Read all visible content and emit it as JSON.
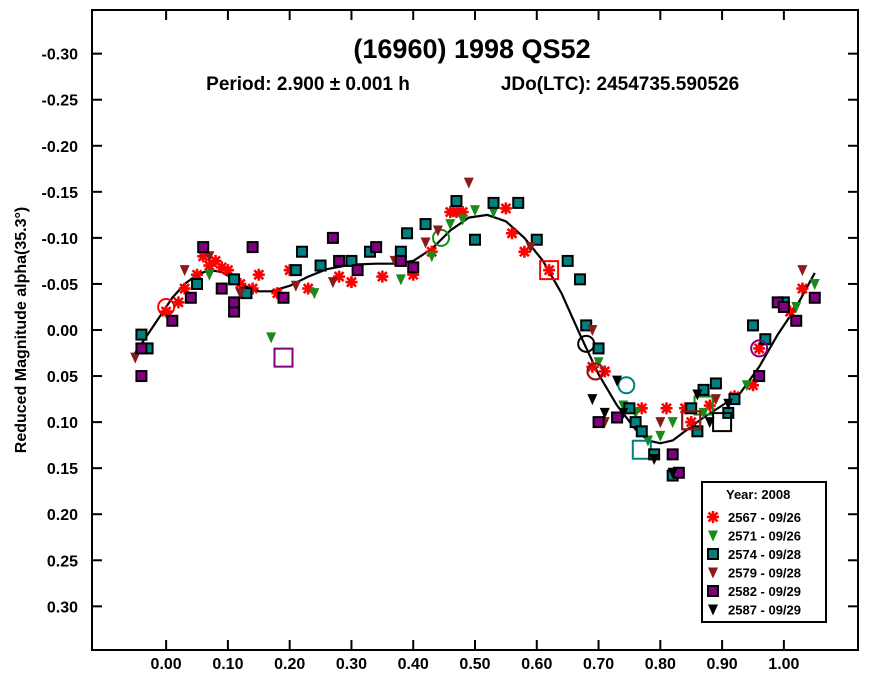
{
  "chart_data": {
    "type": "scatter",
    "title": "(16960) 1998 QS52",
    "subtitle_period": "Period: 2.900 ± 0.001 h",
    "subtitle_epoch": "JDo(LTC): 2454735.590526",
    "ylabel": "Reduced Magnitude alpha(35.3°)",
    "xlabel": "",
    "xlim": [
      -0.12,
      1.12
    ],
    "ylim": [
      0.3474,
      -0.3474
    ],
    "y_inverted": true,
    "grid": false,
    "x_ticks": [
      {
        "v": 0.0,
        "label": "0.00"
      },
      {
        "v": 0.1,
        "label": "0.10"
      },
      {
        "v": 0.2,
        "label": "0.20"
      },
      {
        "v": 0.3,
        "label": "0.30"
      },
      {
        "v": 0.4,
        "label": "0.40"
      },
      {
        "v": 0.5,
        "label": "0.50"
      },
      {
        "v": 0.6,
        "label": "0.60"
      },
      {
        "v": 0.7,
        "label": "0.70"
      },
      {
        "v": 0.8,
        "label": "0.80"
      },
      {
        "v": 0.9,
        "label": "0.90"
      },
      {
        "v": 1.0,
        "label": "1.00"
      }
    ],
    "y_ticks": [
      {
        "v": -0.3,
        "label": "-0.30"
      },
      {
        "v": -0.25,
        "label": "-0.25"
      },
      {
        "v": -0.2,
        "label": "-0.20"
      },
      {
        "v": -0.15,
        "label": "-0.15"
      },
      {
        "v": -0.1,
        "label": "-0.10"
      },
      {
        "v": -0.05,
        "label": "-0.05"
      },
      {
        "v": 0.0,
        "label": "0.00"
      },
      {
        "v": 0.05,
        "label": "0.05"
      },
      {
        "v": 0.1,
        "label": "0.10"
      },
      {
        "v": 0.15,
        "label": "0.15"
      },
      {
        "v": 0.2,
        "label": "0.20"
      },
      {
        "v": 0.25,
        "label": "0.25"
      },
      {
        "v": 0.3,
        "label": "0.30"
      }
    ],
    "legend": {
      "title": "Year: 2008",
      "placement": "bottom-right",
      "entries": [
        {
          "name": "2567 - 09/26",
          "marker": "star",
          "color": "#ff0000"
        },
        {
          "name": "2571 - 09/26",
          "marker": "triangle-down",
          "color": "#1a8a1a"
        },
        {
          "name": "2574 - 09/28",
          "marker": "square",
          "color": "#008080"
        },
        {
          "name": "2579 - 09/28",
          "marker": "triangle-down",
          "color": "#8b1a1a"
        },
        {
          "name": "2582 - 09/29",
          "marker": "square",
          "color": "#800080"
        },
        {
          "name": "2587 - 09/29",
          "marker": "triangle-down",
          "color": "#000000"
        }
      ]
    },
    "fit_curve": [
      [
        -0.05,
        0.025
      ],
      [
        -0.03,
        0.005
      ],
      [
        -0.01,
        -0.015
      ],
      [
        0.01,
        -0.035
      ],
      [
        0.03,
        -0.05
      ],
      [
        0.05,
        -0.06
      ],
      [
        0.07,
        -0.065
      ],
      [
        0.09,
        -0.063
      ],
      [
        0.11,
        -0.055
      ],
      [
        0.13,
        -0.047
      ],
      [
        0.15,
        -0.042
      ],
      [
        0.17,
        -0.042
      ],
      [
        0.2,
        -0.048
      ],
      [
        0.23,
        -0.058
      ],
      [
        0.26,
        -0.066
      ],
      [
        0.3,
        -0.071
      ],
      [
        0.34,
        -0.072
      ],
      [
        0.37,
        -0.072
      ],
      [
        0.4,
        -0.075
      ],
      [
        0.43,
        -0.088
      ],
      [
        0.46,
        -0.108
      ],
      [
        0.49,
        -0.122
      ],
      [
        0.52,
        -0.125
      ],
      [
        0.55,
        -0.118
      ],
      [
        0.58,
        -0.1
      ],
      [
        0.61,
        -0.075
      ],
      [
        0.64,
        -0.04
      ],
      [
        0.67,
        0.005
      ],
      [
        0.7,
        0.048
      ],
      [
        0.73,
        0.082
      ],
      [
        0.76,
        0.108
      ],
      [
        0.78,
        0.12
      ],
      [
        0.8,
        0.123
      ],
      [
        0.82,
        0.12
      ],
      [
        0.84,
        0.11
      ],
      [
        0.87,
        0.095
      ],
      [
        0.9,
        0.082
      ],
      [
        0.93,
        0.068
      ],
      [
        0.96,
        0.04
      ],
      [
        0.99,
        0.005
      ],
      [
        1.02,
        -0.025
      ],
      [
        1.05,
        -0.062
      ]
    ],
    "series": [
      {
        "name": "2567 - 09/26",
        "points": [
          [
            0.0,
            -0.02
          ],
          [
            0.02,
            -0.03
          ],
          [
            0.03,
            -0.045
          ],
          [
            0.05,
            -0.06
          ],
          [
            0.06,
            -0.08
          ],
          [
            0.07,
            -0.07
          ],
          [
            0.08,
            -0.075
          ],
          [
            0.09,
            -0.068
          ],
          [
            0.1,
            -0.065
          ],
          [
            0.12,
            -0.05
          ],
          [
            0.14,
            -0.045
          ],
          [
            0.15,
            -0.06
          ],
          [
            0.18,
            -0.04
          ],
          [
            0.2,
            -0.065
          ],
          [
            0.23,
            -0.045
          ],
          [
            0.28,
            -0.058
          ],
          [
            0.3,
            -0.052
          ],
          [
            0.35,
            -0.058
          ],
          [
            0.4,
            -0.06
          ],
          [
            0.43,
            -0.085
          ],
          [
            0.46,
            -0.128
          ],
          [
            0.47,
            -0.128
          ],
          [
            0.48,
            -0.128
          ],
          [
            0.55,
            -0.132
          ],
          [
            0.56,
            -0.105
          ],
          [
            0.58,
            -0.085
          ],
          [
            0.62,
            -0.065
          ],
          [
            0.69,
            0.04
          ],
          [
            0.71,
            0.045
          ],
          [
            0.77,
            0.085
          ],
          [
            0.81,
            0.085
          ],
          [
            0.84,
            0.085
          ],
          [
            0.85,
            0.1
          ],
          [
            0.88,
            0.082
          ],
          [
            0.92,
            0.072
          ],
          [
            0.95,
            0.06
          ],
          [
            0.96,
            0.02
          ],
          [
            1.01,
            -0.02
          ],
          [
            1.03,
            -0.045
          ]
        ],
        "circled": [
          [
            0.0,
            -0.025
          ],
          [
            0.695,
            0.045
          ]
        ],
        "boxed": [
          [
            0.62,
            -0.065
          ],
          [
            0.85,
            0.098
          ]
        ]
      },
      {
        "name": "2571 - 09/26",
        "points": [
          [
            0.07,
            -0.06
          ],
          [
            0.17,
            0.008
          ],
          [
            0.24,
            -0.04
          ],
          [
            0.38,
            -0.055
          ],
          [
            0.43,
            -0.08
          ],
          [
            0.46,
            -0.115
          ],
          [
            0.48,
            -0.12
          ],
          [
            0.5,
            -0.13
          ],
          [
            0.53,
            -0.128
          ],
          [
            0.7,
            0.035
          ],
          [
            0.74,
            0.082
          ],
          [
            0.76,
            0.09
          ],
          [
            0.78,
            0.12
          ],
          [
            0.8,
            0.115
          ],
          [
            0.82,
            0.1
          ],
          [
            0.87,
            0.09
          ],
          [
            0.94,
            0.06
          ],
          [
            1.02,
            -0.025
          ],
          [
            1.05,
            -0.05
          ]
        ],
        "circled": [
          [
            0.445,
            -0.1
          ]
        ],
        "boxed": [
          [
            0.87,
            0.082
          ]
        ]
      },
      {
        "name": "2574 - 09/28",
        "points": [
          [
            -0.04,
            0.005
          ],
          [
            -0.03,
            0.02
          ],
          [
            0.05,
            -0.05
          ],
          [
            0.11,
            -0.055
          ],
          [
            0.13,
            -0.04
          ],
          [
            0.21,
            -0.065
          ],
          [
            0.22,
            -0.085
          ],
          [
            0.25,
            -0.07
          ],
          [
            0.3,
            -0.075
          ],
          [
            0.33,
            -0.085
          ],
          [
            0.38,
            -0.085
          ],
          [
            0.39,
            -0.105
          ],
          [
            0.42,
            -0.115
          ],
          [
            0.47,
            -0.14
          ],
          [
            0.5,
            -0.098
          ],
          [
            0.53,
            -0.138
          ],
          [
            0.57,
            -0.138
          ],
          [
            0.6,
            -0.098
          ],
          [
            0.65,
            -0.075
          ],
          [
            0.67,
            -0.055
          ],
          [
            0.68,
            -0.005
          ],
          [
            0.7,
            0.02
          ],
          [
            0.75,
            0.085
          ],
          [
            0.76,
            0.1
          ],
          [
            0.77,
            0.11
          ],
          [
            0.79,
            0.135
          ],
          [
            0.82,
            0.158
          ],
          [
            0.85,
            0.085
          ],
          [
            0.86,
            0.11
          ],
          [
            0.87,
            0.065
          ],
          [
            0.89,
            0.058
          ],
          [
            0.91,
            0.09
          ],
          [
            0.92,
            0.075
          ],
          [
            0.95,
            -0.005
          ],
          [
            0.97,
            0.01
          ],
          [
            1.0,
            -0.03
          ]
        ],
        "circled": [
          [
            0.745,
            0.06
          ]
        ],
        "boxed": [
          [
            0.77,
            0.13
          ]
        ]
      },
      {
        "name": "2579 - 09/28",
        "points": [
          [
            -0.05,
            0.03
          ],
          [
            0.03,
            -0.065
          ],
          [
            0.07,
            -0.08
          ],
          [
            0.12,
            -0.04
          ],
          [
            0.21,
            -0.048
          ],
          [
            0.27,
            -0.052
          ],
          [
            0.37,
            -0.075
          ],
          [
            0.42,
            -0.095
          ],
          [
            0.44,
            -0.108
          ],
          [
            0.49,
            -0.16
          ],
          [
            0.59,
            -0.09
          ],
          [
            0.69,
            0.0
          ],
          [
            0.71,
            0.1
          ],
          [
            0.8,
            0.1
          ],
          [
            0.89,
            0.075
          ],
          [
            1.03,
            -0.065
          ]
        ],
        "circled": [
          [
            0.695,
            0.045
          ]
        ],
        "boxed": [
          [
            0.85,
            0.098
          ]
        ]
      },
      {
        "name": "2582 - 09/29",
        "points": [
          [
            -0.04,
            0.05
          ],
          [
            -0.04,
            0.02
          ],
          [
            0.01,
            -0.01
          ],
          [
            0.04,
            -0.035
          ],
          [
            0.06,
            -0.09
          ],
          [
            0.09,
            -0.045
          ],
          [
            0.11,
            -0.02
          ],
          [
            0.11,
            -0.03
          ],
          [
            0.14,
            -0.09
          ],
          [
            0.19,
            -0.035
          ],
          [
            0.27,
            -0.1
          ],
          [
            0.28,
            -0.075
          ],
          [
            0.31,
            -0.065
          ],
          [
            0.34,
            -0.09
          ],
          [
            0.38,
            -0.075
          ],
          [
            0.4,
            -0.068
          ],
          [
            0.7,
            0.1
          ],
          [
            0.73,
            0.095
          ],
          [
            0.82,
            0.135
          ],
          [
            0.83,
            0.155
          ],
          [
            0.96,
            0.05
          ],
          [
            0.99,
            -0.03
          ],
          [
            1.0,
            -0.025
          ],
          [
            1.02,
            -0.01
          ],
          [
            1.05,
            -0.035
          ]
        ],
        "circled": [
          [
            0.96,
            0.02
          ]
        ],
        "boxed": [
          [
            0.19,
            0.03
          ]
        ]
      },
      {
        "name": "2587 - 09/29",
        "points": [
          [
            0.69,
            0.075
          ],
          [
            0.71,
            0.09
          ],
          [
            0.73,
            0.055
          ],
          [
            0.74,
            0.09
          ],
          [
            0.79,
            0.14
          ],
          [
            0.82,
            0.155
          ],
          [
            0.86,
            0.07
          ],
          [
            0.88,
            0.1
          ],
          [
            0.91,
            0.08
          ]
        ],
        "circled": [
          [
            0.68,
            0.015
          ]
        ],
        "boxed": [
          [
            0.9,
            0.1
          ]
        ]
      }
    ]
  }
}
